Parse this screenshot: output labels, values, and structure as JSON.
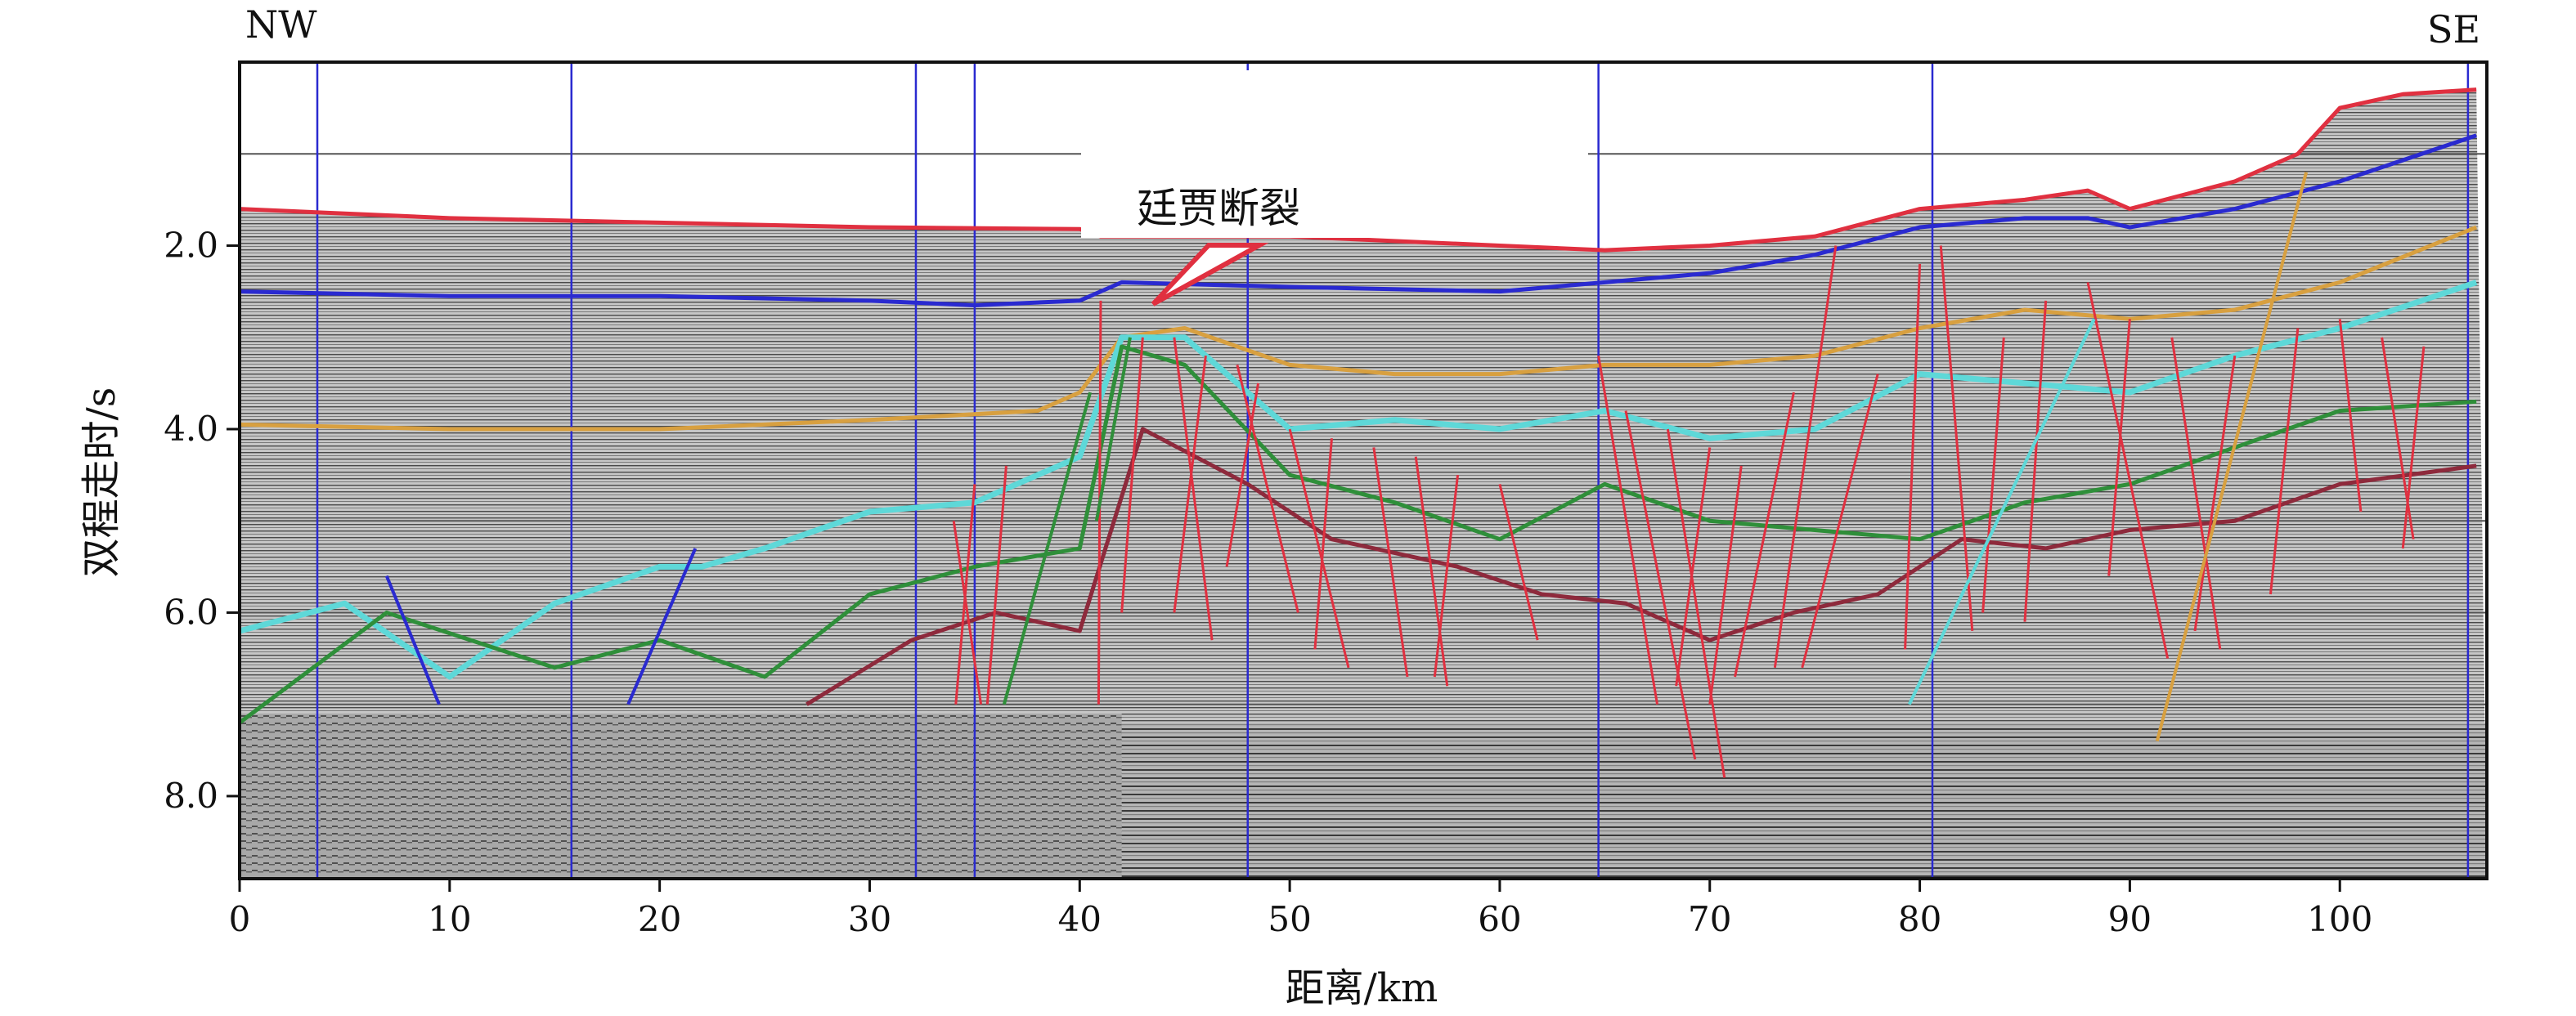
{
  "chart_data": {
    "type": "line",
    "corner_labels": {
      "left": "NW",
      "right": "SE"
    },
    "xlabel": "距离/km",
    "ylabel": "双程走时/s",
    "xlim": [
      0,
      107
    ],
    "ylim": [
      8.9,
      0.0
    ],
    "x_ticks": [
      0,
      10,
      20,
      30,
      40,
      50,
      60,
      70,
      80,
      90,
      100
    ],
    "x_tick_labels": [
      "0",
      "10",
      "20",
      "30",
      "40",
      "50",
      "60",
      "70",
      "80",
      "90",
      "100"
    ],
    "y_ticks": [
      2.0,
      4.0,
      6.0,
      8.0
    ],
    "y_tick_labels": [
      "2.0",
      "4.0",
      "6.0",
      "8.0"
    ],
    "annotation": {
      "text": "廷贾断裂",
      "x": 43.5,
      "y": 2.6
    },
    "colors": {
      "red": "#e03040",
      "blue": "#2a2ad0",
      "orange": "#d8a040",
      "cyan": "#5ed8d8",
      "green": "#2f8f3a",
      "darkred": "#8e2a3c",
      "panel": "#b8b8b8"
    },
    "vertical_lines_km": [
      3.7,
      15.8,
      32.2,
      35.0,
      48.0,
      64.7,
      80.6,
      106.1
    ],
    "series": [
      {
        "color": "red",
        "x": [
          0,
          10,
          20,
          30,
          40,
          41,
          50,
          60,
          65,
          70,
          75,
          80,
          85,
          88,
          90,
          95,
          98,
          100,
          103,
          106.5
        ],
        "y": [
          1.6,
          1.7,
          1.75,
          1.8,
          1.82,
          1.9,
          1.9,
          2.0,
          2.05,
          2.0,
          1.9,
          1.6,
          1.5,
          1.4,
          1.6,
          1.3,
          1.0,
          0.5,
          0.35,
          0.3
        ]
      },
      {
        "color": "blue",
        "x": [
          0,
          10,
          20,
          30,
          35,
          40,
          42,
          50,
          60,
          65,
          70,
          75,
          80,
          85,
          88,
          90,
          95,
          100,
          106.5
        ],
        "y": [
          2.5,
          2.55,
          2.55,
          2.6,
          2.65,
          2.6,
          2.4,
          2.45,
          2.5,
          2.4,
          2.3,
          2.1,
          1.8,
          1.7,
          1.7,
          1.8,
          1.6,
          1.3,
          0.8
        ]
      },
      {
        "color": "orange",
        "x": [
          0,
          10,
          20,
          30,
          38,
          40,
          42,
          45,
          50,
          55,
          60,
          65,
          70,
          75,
          80,
          85,
          90,
          95,
          100,
          106.5
        ],
        "y": [
          3.95,
          4.0,
          4.0,
          3.9,
          3.8,
          3.6,
          3.0,
          2.9,
          3.3,
          3.4,
          3.4,
          3.3,
          3.3,
          3.2,
          2.9,
          2.7,
          2.8,
          2.7,
          2.4,
          1.8
        ]
      },
      {
        "color": "cyan",
        "x": [
          0,
          5,
          10,
          15,
          20,
          22,
          25,
          30,
          35,
          40,
          42,
          45,
          50,
          55,
          60,
          65,
          70,
          75,
          80,
          85,
          90,
          95,
          100,
          106.5
        ],
        "y": [
          6.2,
          5.9,
          6.7,
          5.9,
          5.5,
          5.5,
          5.3,
          4.9,
          4.8,
          4.3,
          3.0,
          3.0,
          4.0,
          3.9,
          4.0,
          3.8,
          4.1,
          4.0,
          3.4,
          3.5,
          3.6,
          3.2,
          2.9,
          2.4
        ]
      },
      {
        "color": "green",
        "x": [
          0,
          7,
          15,
          20,
          25,
          30,
          35,
          40,
          42,
          45,
          50,
          55,
          60,
          65,
          70,
          75,
          80,
          85,
          90,
          95,
          100,
          106.5
        ],
        "y": [
          7.2,
          6.0,
          6.6,
          6.3,
          6.7,
          5.8,
          5.5,
          5.3,
          3.1,
          3.3,
          4.5,
          4.8,
          5.2,
          4.6,
          5.0,
          5.1,
          5.2,
          4.8,
          4.6,
          4.2,
          3.8,
          3.7
        ]
      },
      {
        "color": "darkred",
        "x": [
          27,
          32,
          36,
          40,
          43,
          48,
          52,
          58,
          62,
          66,
          70,
          74,
          78,
          82,
          86,
          90,
          95,
          100,
          106.5
        ],
        "y": [
          7.0,
          6.3,
          6.0,
          6.2,
          4.0,
          4.6,
          5.2,
          5.5,
          5.8,
          5.9,
          6.3,
          6.0,
          5.8,
          5.2,
          5.3,
          5.1,
          5.0,
          4.6,
          4.4
        ]
      }
    ]
  }
}
